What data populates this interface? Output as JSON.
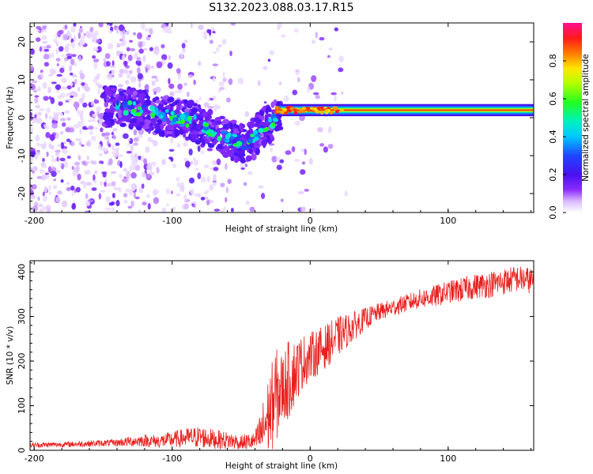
{
  "title": "S132.2023.088.03.17.R15",
  "chart_data": [
    {
      "type": "heatmap",
      "xlabel": "Height of straight line (km)",
      "ylabel": "Frequency (Hz)",
      "xlim": [
        -203,
        162
      ],
      "ylim": [
        -25,
        25
      ],
      "xticks": [
        -200,
        -100,
        0,
        100
      ],
      "yticks": [
        -20,
        -10,
        0,
        10,
        20
      ],
      "colorbar": {
        "label": "Normalized spectral amplitude",
        "range": [
          0,
          1
        ],
        "ticks": [
          "0.0",
          "0.2",
          "0.4",
          "0.6",
          "0.8"
        ],
        "colormap": "white-violet-blue-cyan-green-yellow-red-magenta"
      },
      "ridge": {
        "description_points_x": [
          -140,
          -120,
          -100,
          -85,
          -70,
          -55,
          -45,
          -35,
          -25,
          -15,
          -5,
          0,
          20,
          60,
          100,
          140,
          162
        ],
        "description_points_freq": [
          3,
          2,
          0,
          -1,
          -4,
          -6,
          -7,
          -3,
          0,
          2,
          2,
          2,
          2,
          2,
          2,
          2,
          1
        ]
      }
    },
    {
      "type": "line",
      "xlabel": "Height of straight line (km)",
      "ylabel": "SNR (10 * v/v)",
      "xlim": [
        -203,
        162
      ],
      "ylim": [
        0,
        425
      ],
      "xticks": [
        -200,
        -100,
        0,
        100
      ],
      "yticks": [
        0,
        100,
        200,
        300,
        400
      ],
      "series": [
        {
          "color": "#e8201e",
          "x": [
            -200,
            -180,
            -160,
            -140,
            -130,
            -120,
            -110,
            -100,
            -90,
            -80,
            -70,
            -60,
            -50,
            -40,
            -35,
            -30,
            -25,
            -20,
            -15,
            -10,
            -5,
            0,
            10,
            20,
            30,
            40,
            50,
            60,
            70,
            80,
            90,
            100,
            110,
            120,
            130,
            140,
            150,
            162
          ],
          "y": [
            12,
            13,
            15,
            17,
            20,
            22,
            20,
            24,
            28,
            30,
            25,
            22,
            18,
            20,
            40,
            80,
            120,
            140,
            160,
            180,
            200,
            210,
            230,
            255,
            275,
            295,
            310,
            320,
            330,
            340,
            345,
            355,
            360,
            368,
            372,
            378,
            385,
            380
          ],
          "noise_amplitude": [
            6,
            6,
            7,
            8,
            12,
            14,
            15,
            18,
            22,
            25,
            22,
            20,
            18,
            20,
            60,
            90,
            110,
            80,
            90,
            70,
            60,
            55,
            50,
            45,
            35,
            25,
            20,
            20,
            20,
            22,
            25,
            25,
            28,
            28,
            30,
            30,
            30,
            30
          ]
        }
      ]
    }
  ]
}
